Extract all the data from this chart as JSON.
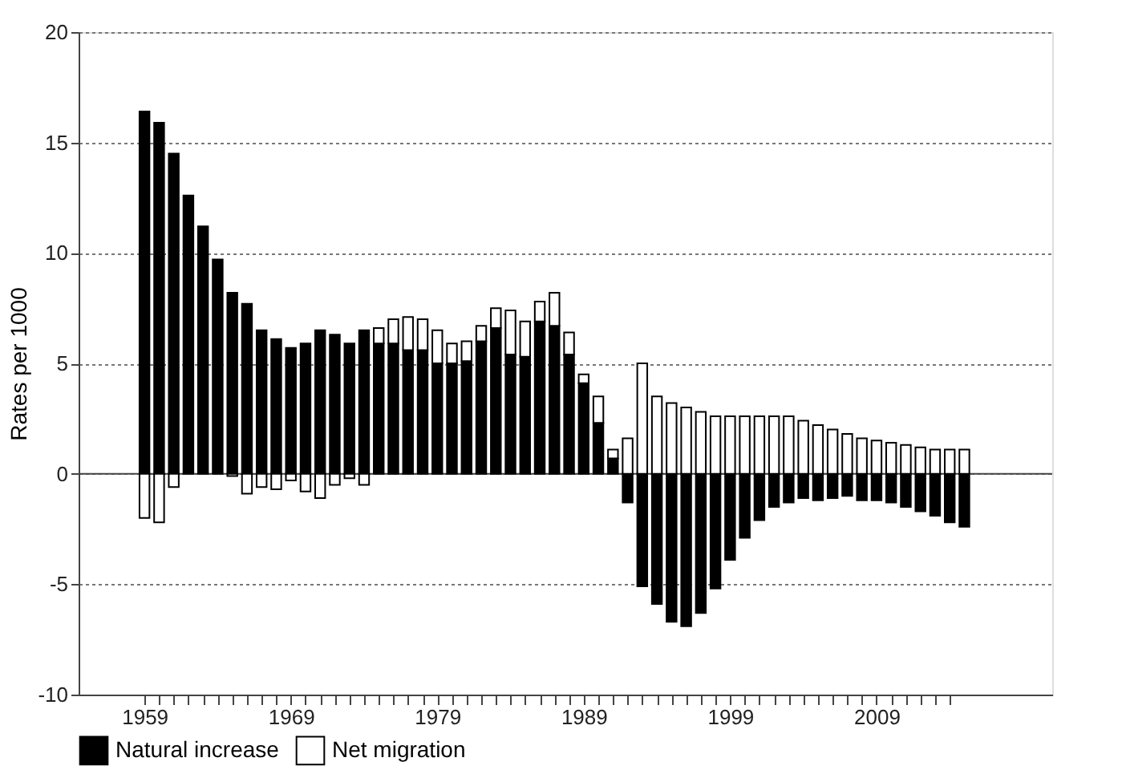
{
  "chart_data": {
    "type": "bar",
    "stacked": true,
    "ylabel": "Rates per 1000",
    "x": [
      1959,
      1960,
      1961,
      1962,
      1963,
      1964,
      1965,
      1966,
      1967,
      1968,
      1969,
      1970,
      1971,
      1972,
      1973,
      1974,
      1975,
      1976,
      1977,
      1978,
      1979,
      1980,
      1981,
      1982,
      1983,
      1984,
      1985,
      1986,
      1987,
      1988,
      1989,
      1990,
      1991,
      1992,
      1993,
      1994,
      1995,
      1996,
      1997,
      1998,
      1999,
      2000,
      2001,
      2002,
      2003,
      2004,
      2005,
      2006,
      2007,
      2008,
      2009,
      2010,
      2011,
      2012,
      2013,
      2014,
      2015
    ],
    "series": [
      {
        "name": "Natural increase",
        "color": "#000000",
        "values": [
          16.4,
          15.9,
          14.5,
          12.6,
          11.2,
          9.7,
          8.2,
          7.7,
          6.5,
          6.1,
          5.7,
          5.9,
          6.5,
          6.3,
          5.9,
          6.5,
          5.9,
          5.9,
          5.6,
          5.6,
          5.0,
          5.0,
          5.1,
          6.0,
          6.6,
          5.4,
          5.3,
          6.9,
          6.7,
          5.4,
          4.1,
          2.3,
          0.7,
          -1.3,
          -5.1,
          -5.9,
          -6.7,
          -6.9,
          -6.3,
          -5.2,
          -3.9,
          -2.9,
          -2.1,
          -1.5,
          -1.3,
          -1.1,
          -1.2,
          -1.1,
          -1.0,
          -1.2,
          -1.2,
          -1.3,
          -1.5,
          -1.7,
          -1.9,
          -2.2,
          -2.4
        ]
      },
      {
        "name": "Net migration",
        "color": "#ffffff",
        "values": [
          -2.0,
          -2.2,
          -0.6,
          null,
          null,
          null,
          -0.1,
          -0.9,
          -0.6,
          -0.7,
          -0.3,
          -0.8,
          -1.1,
          -0.5,
          -0.2,
          -0.5,
          0.7,
          1.1,
          1.5,
          1.4,
          1.5,
          0.9,
          0.9,
          0.7,
          0.9,
          2.0,
          1.6,
          0.9,
          1.5,
          1.0,
          0.4,
          1.2,
          0.4,
          1.6,
          5.0,
          3.5,
          3.2,
          3.0,
          2.8,
          2.6,
          2.6,
          2.6,
          2.6,
          2.6,
          2.6,
          2.4,
          2.2,
          2.0,
          1.8,
          1.6,
          1.5,
          1.4,
          1.3,
          1.2,
          1.1,
          1.1,
          1.1
        ]
      }
    ],
    "xlim": [
      1954.5,
      2021
    ],
    "xticks": [
      1959,
      {
        "value": 1960,
        "label": null
      },
      {
        "value": 1961,
        "label": null
      },
      {
        "value": 1962,
        "label": null
      },
      {
        "value": 1963,
        "label": null
      },
      {
        "value": 1964,
        "label": null
      },
      {
        "value": 1965,
        "label": null
      },
      {
        "value": 1966,
        "label": null
      },
      {
        "value": 1967,
        "label": null
      },
      {
        "value": 1968,
        "label": null
      },
      1969,
      {
        "value": 1970,
        "label": null
      },
      {
        "value": 1971,
        "label": null
      },
      {
        "value": 1972,
        "label": null
      },
      {
        "value": 1973,
        "label": null
      },
      {
        "value": 1974,
        "label": null
      },
      {
        "value": 1975,
        "label": null
      },
      {
        "value": 1976,
        "label": null
      },
      {
        "value": 1977,
        "label": null
      },
      {
        "value": 1978,
        "label": null
      },
      1979,
      {
        "value": 1980,
        "label": null
      },
      {
        "value": 1981,
        "label": null
      },
      {
        "value": 1982,
        "label": null
      },
      {
        "value": 1983,
        "label": null
      },
      {
        "value": 1984,
        "label": null
      },
      {
        "value": 1985,
        "label": null
      },
      {
        "value": 1986,
        "label": null
      },
      {
        "value": 1987,
        "label": null
      },
      {
        "value": 1988,
        "label": null
      },
      1989,
      {
        "value": 1990,
        "label": null
      },
      {
        "value": 1991,
        "label": null
      },
      {
        "value": 1992,
        "label": null
      },
      {
        "value": 1993,
        "label": null
      },
      {
        "value": 1994,
        "label": null
      },
      {
        "value": 1995,
        "label": null
      },
      {
        "value": 1996,
        "label": null
      },
      {
        "value": 1997,
        "label": null
      },
      {
        "value": 1998,
        "label": null
      },
      1999,
      {
        "value": 2000,
        "label": null
      },
      {
        "value": 2001,
        "label": null
      },
      {
        "value": 2002,
        "label": null
      },
      {
        "value": 2003,
        "label": null
      },
      {
        "value": 2004,
        "label": null
      },
      {
        "value": 2005,
        "label": null
      },
      {
        "value": 2006,
        "label": null
      },
      {
        "value": 2007,
        "label": null
      },
      {
        "value": 2008,
        "label": null
      },
      2009,
      {
        "value": 2010,
        "label": null
      },
      {
        "value": 2011,
        "label": null
      },
      {
        "value": 2012,
        "label": null
      },
      {
        "value": 2013,
        "label": null
      },
      {
        "value": 2014,
        "label": null
      }
    ],
    "ylim": [
      -10,
      20
    ],
    "yticks": [
      -10,
      -5,
      0,
      5,
      10,
      15,
      20
    ],
    "grid": "y",
    "legend": "bottom",
    "ref_lines": [
      {
        "axis": "y",
        "value": 0,
        "color": "#444444",
        "line_style": "solid"
      }
    ]
  }
}
